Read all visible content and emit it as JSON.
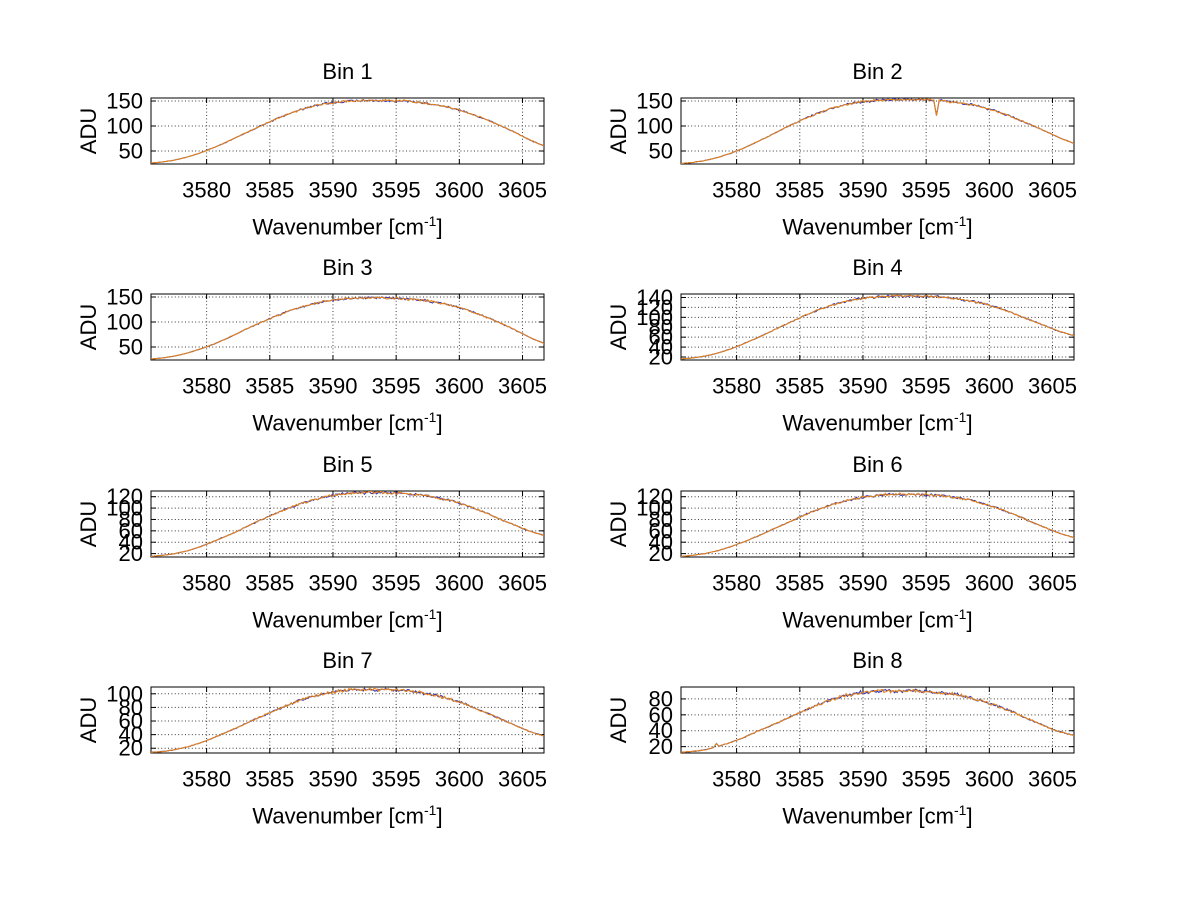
{
  "figure": {
    "background": "#ffffff"
  },
  "labels": {
    "ylabel": "ADU",
    "xlabel_pre": "Wavenumber [cm",
    "xlabel_sup": "-1",
    "xlabel_post": "]"
  },
  "chart_data": {
    "type": "line",
    "layout": "4x2-subplot-grid",
    "xlabel": "Wavenumber [cm^-1]",
    "ylabel": "ADU",
    "grid": true,
    "xlim": [
      3575.6,
      3606.7
    ],
    "x_ticks": [
      3580,
      3585,
      3590,
      3595,
      3600,
      3605
    ],
    "series_colors": {
      "underlay_line": "#3a3ab4",
      "overlay_line": "#e2831e"
    },
    "x": [
      3575.6,
      3576.5,
      3577.5,
      3578.5,
      3579.5,
      3580.5,
      3581.5,
      3582.5,
      3583.5,
      3584.5,
      3585.5,
      3586.5,
      3587.5,
      3588.5,
      3589.5,
      3590.5,
      3591.5,
      3592.5,
      3593.5,
      3594.5,
      3595.5,
      3596.5,
      3597.5,
      3598.5,
      3599.5,
      3600.5,
      3601.5,
      3602.5,
      3603.5,
      3604.5,
      3605.5,
      3606.7
    ],
    "plots": [
      {
        "title": "Bin 1",
        "y_ticks": [
          50,
          100,
          150
        ],
        "ylim": [
          24,
          156
        ],
        "adu": [
          26,
          28,
          32,
          38,
          46,
          56,
          67,
          79,
          91,
          103,
          114,
          124,
          133,
          140,
          145,
          148,
          150,
          151,
          151,
          151,
          150,
          148,
          145,
          141,
          135,
          128,
          119,
          109,
          98,
          86,
          73,
          60
        ],
        "spikes": []
      },
      {
        "title": "Bin 2",
        "y_ticks": [
          50,
          100,
          150
        ],
        "ylim": [
          24,
          156
        ],
        "adu": [
          25,
          27,
          31,
          37,
          45,
          55,
          67,
          79,
          92,
          104,
          116,
          126,
          135,
          142,
          147,
          150,
          152,
          153,
          153,
          153,
          152,
          150,
          147,
          143,
          137,
          130,
          121,
          111,
          100,
          89,
          77,
          65
        ],
        "spikes": [
          {
            "x": 3595.8,
            "y": 121
          }
        ]
      },
      {
        "title": "Bin 3",
        "y_ticks": [
          50,
          100,
          150
        ],
        "ylim": [
          24,
          156
        ],
        "adu": [
          26,
          28,
          32,
          38,
          46,
          55,
          66,
          78,
          90,
          101,
          112,
          122,
          130,
          137,
          142,
          145,
          147,
          148,
          148,
          148,
          147,
          145,
          142,
          138,
          132,
          125,
          116,
          106,
          95,
          83,
          70,
          57
        ],
        "spikes": []
      },
      {
        "title": "Bin 4",
        "y_ticks": [
          20,
          40,
          60,
          80,
          100,
          120,
          140
        ],
        "ylim": [
          14,
          147
        ],
        "adu": [
          16,
          18,
          22,
          28,
          36,
          46,
          57,
          69,
          81,
          93,
          105,
          115,
          124,
          131,
          137,
          140,
          142,
          143,
          143,
          143,
          142,
          140,
          137,
          133,
          128,
          121,
          112,
          102,
          92,
          82,
          72,
          63
        ],
        "spikes": []
      },
      {
        "title": "Bin 5",
        "y_ticks": [
          20,
          40,
          60,
          80,
          100,
          120
        ],
        "ylim": [
          14,
          130
        ],
        "adu": [
          15,
          17,
          20,
          25,
          32,
          41,
          50,
          60,
          71,
          81,
          91,
          100,
          108,
          115,
          120,
          124,
          126,
          127,
          127,
          127,
          126,
          124,
          121,
          117,
          112,
          105,
          97,
          88,
          78,
          69,
          60,
          52
        ],
        "spikes": []
      },
      {
        "title": "Bin 6",
        "y_ticks": [
          20,
          40,
          60,
          80,
          100,
          120
        ],
        "ylim": [
          14,
          130
        ],
        "adu": [
          15,
          17,
          20,
          25,
          32,
          40,
          49,
          59,
          69,
          79,
          89,
          98,
          106,
          112,
          117,
          121,
          123,
          124,
          124,
          124,
          123,
          121,
          118,
          114,
          108,
          101,
          93,
          84,
          74,
          65,
          56,
          48
        ],
        "spikes": []
      },
      {
        "title": "Bin 7",
        "y_ticks": [
          20,
          40,
          60,
          80,
          100
        ],
        "ylim": [
          13,
          110
        ],
        "adu": [
          14,
          15,
          18,
          22,
          28,
          35,
          43,
          51,
          60,
          68,
          76,
          84,
          91,
          97,
          101,
          104,
          106,
          106,
          106,
          106,
          105,
          103,
          100,
          96,
          91,
          85,
          77,
          69,
          61,
          53,
          45,
          38
        ],
        "spikes": []
      },
      {
        "title": "Bin 8",
        "y_ticks": [
          20,
          40,
          60,
          80
        ],
        "ylim": [
          12,
          95
        ],
        "adu": [
          13,
          14,
          16,
          20,
          25,
          31,
          38,
          45,
          52,
          59,
          66,
          73,
          79,
          84,
          87,
          89,
          90,
          90,
          90,
          90,
          89,
          87,
          85,
          81,
          77,
          72,
          66,
          59,
          52,
          45,
          39,
          34
        ],
        "spikes": [
          {
            "x": 3578.4,
            "y": 24
          }
        ]
      }
    ]
  }
}
